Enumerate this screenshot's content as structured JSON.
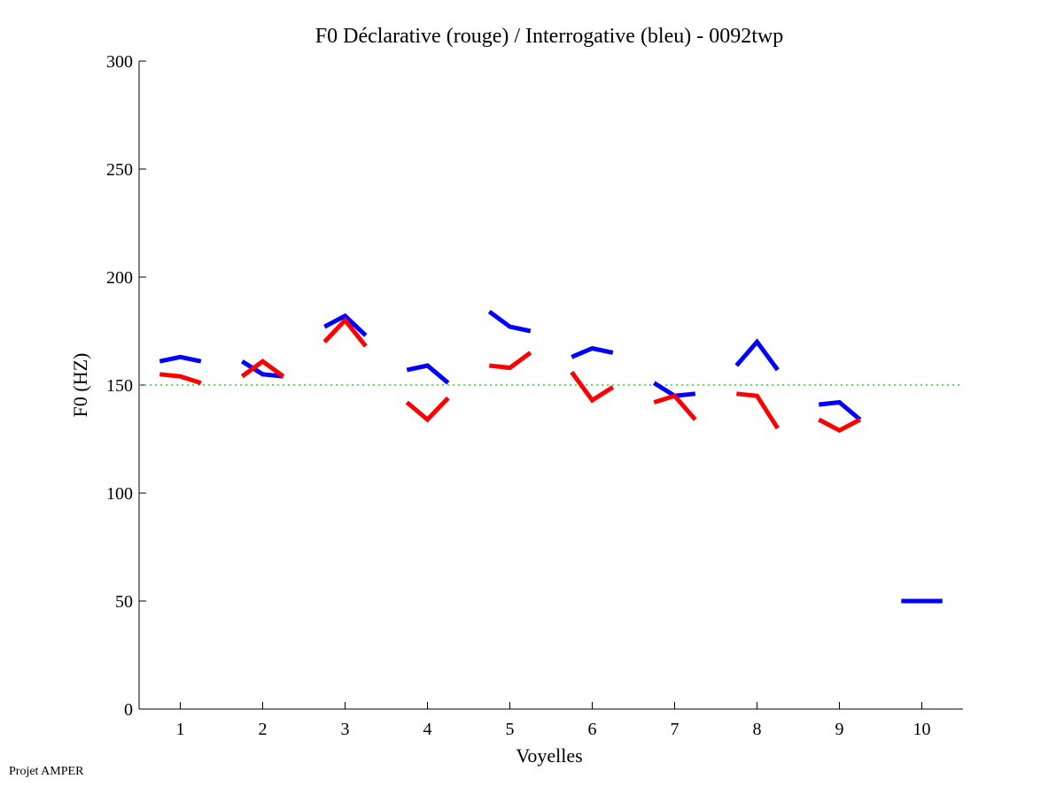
{
  "chart_data": {
    "type": "line",
    "title": "F0 Déclarative (rouge) / Interrogative (bleu) - 0092twp",
    "xlabel": "Voyelles",
    "ylabel": "F0 (HZ)",
    "xlim": [
      0.5,
      10.5
    ],
    "ylim": [
      0,
      300
    ],
    "xticks": [
      "1",
      "2",
      "3",
      "4",
      "5",
      "6",
      "7",
      "8",
      "9",
      "10"
    ],
    "yticks": [
      "0",
      "50",
      "100",
      "150",
      "200",
      "250",
      "300"
    ],
    "reference_line": {
      "y": 150,
      "color": "#00cc00",
      "style": "dotted"
    },
    "series": [
      {
        "name": "Interrogative (bleu)",
        "color": "#0000ff",
        "segments": [
          {
            "vowel": 1,
            "values": [
              161,
              163,
              161
            ]
          },
          {
            "vowel": 2,
            "values": [
              161,
              155,
              154
            ]
          },
          {
            "vowel": 3,
            "values": [
              177,
              182,
              173
            ]
          },
          {
            "vowel": 4,
            "values": [
              157,
              159,
              151
            ]
          },
          {
            "vowel": 5,
            "values": [
              184,
              177,
              175
            ]
          },
          {
            "vowel": 6,
            "values": [
              163,
              167,
              165
            ]
          },
          {
            "vowel": 7,
            "values": [
              151,
              145,
              146
            ]
          },
          {
            "vowel": 8,
            "values": [
              159,
              170,
              157
            ]
          },
          {
            "vowel": 9,
            "values": [
              141,
              142,
              134
            ]
          },
          {
            "vowel": 10,
            "values": [
              50,
              50,
              50
            ]
          }
        ]
      },
      {
        "name": "Déclarative (rouge)",
        "color": "#ff0000",
        "segments": [
          {
            "vowel": 1,
            "values": [
              155,
              154,
              151
            ]
          },
          {
            "vowel": 2,
            "values": [
              154,
              161,
              154
            ]
          },
          {
            "vowel": 3,
            "values": [
              170,
              180,
              168
            ]
          },
          {
            "vowel": 4,
            "values": [
              142,
              134,
              144
            ]
          },
          {
            "vowel": 5,
            "values": [
              159,
              158,
              165
            ]
          },
          {
            "vowel": 6,
            "values": [
              156,
              143,
              149
            ]
          },
          {
            "vowel": 7,
            "values": [
              142,
              145,
              134
            ]
          },
          {
            "vowel": 8,
            "values": [
              146,
              145,
              130
            ]
          },
          {
            "vowel": 9,
            "values": [
              134,
              129,
              134
            ]
          }
        ]
      }
    ]
  },
  "footer": "Projet AMPER"
}
